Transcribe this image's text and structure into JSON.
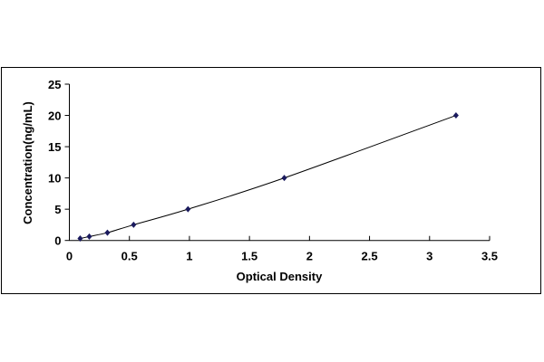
{
  "chart_data": {
    "type": "scatter",
    "title": "",
    "xlabel": "Optical Density",
    "ylabel": "Concentration(ng/mL)",
    "xlim": [
      0,
      3.5
    ],
    "ylim": [
      0,
      25
    ],
    "xticks": [
      "0",
      "0.5",
      "1",
      "1.5",
      "2",
      "2.5",
      "3",
      "3.5"
    ],
    "yticks": [
      "0",
      "5",
      "10",
      "15",
      "20",
      "25"
    ],
    "grid": false,
    "legend": "none",
    "trendline": "smooth curve through points",
    "marker": "diamond",
    "colors": {
      "marker": "#1a1a5e",
      "line": "#000000"
    },
    "series": [
      {
        "x": [
          0.09,
          0.166,
          0.317,
          0.535,
          0.988,
          1.79,
          3.22
        ],
        "y": [
          0.31,
          0.625,
          1.25,
          2.5,
          5,
          10,
          20
        ]
      }
    ]
  }
}
